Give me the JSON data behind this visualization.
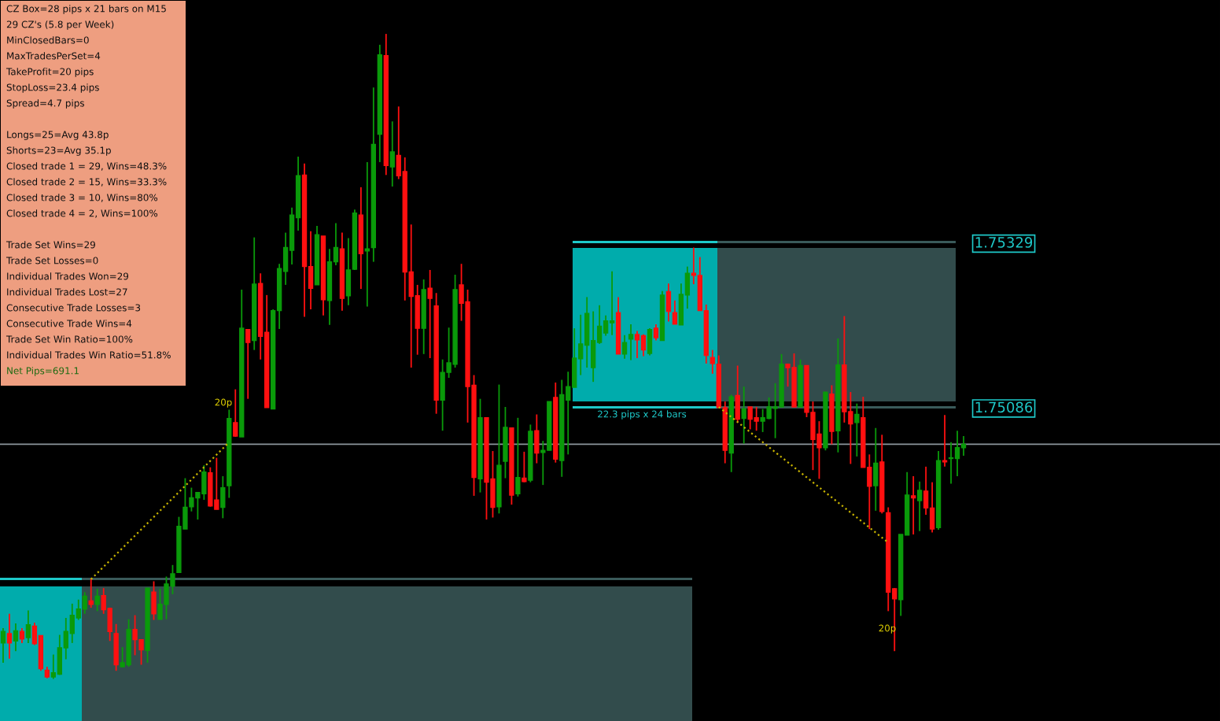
{
  "chart_data": {
    "type": "candlestick",
    "categories": [
      null,
      null,
      null,
      null,
      null,
      null,
      null,
      null,
      null,
      null,
      null,
      null,
      null,
      null,
      null,
      null,
      null,
      null,
      null,
      null,
      null,
      null,
      null,
      null,
      null,
      null,
      null,
      null,
      null,
      null,
      null,
      null,
      null,
      null,
      null,
      null,
      null,
      null,
      null,
      null,
      null,
      null,
      null,
      null,
      null,
      null,
      null,
      null,
      null,
      null,
      null,
      null,
      null,
      null,
      null,
      null,
      null,
      null,
      null,
      null,
      null,
      null,
      null,
      null,
      null,
      null,
      null,
      null,
      null,
      null,
      null,
      null,
      null,
      null,
      null,
      null,
      null,
      null,
      null,
      null,
      null,
      null,
      null,
      null,
      null,
      null,
      null,
      null,
      null,
      null,
      null,
      null,
      null,
      null,
      null,
      null,
      null,
      null,
      null,
      null,
      null,
      null,
      null,
      null,
      null,
      null,
      null,
      null,
      null,
      null,
      null,
      null,
      null,
      null,
      null,
      null,
      null,
      null,
      null,
      null,
      null,
      null,
      null,
      null,
      null,
      null,
      null,
      null,
      null,
      null,
      null,
      null,
      null,
      null,
      null,
      null,
      null,
      null,
      null,
      null,
      null,
      null,
      null,
      null,
      null,
      null,
      null,
      null,
      null,
      null,
      null,
      null,
      null,
      null
    ],
    "ohlc": [
      [
        1.74738,
        1.7476,
        1.74709,
        1.74755
      ],
      [
        1.74752,
        1.74781,
        1.74715,
        1.74738
      ],
      [
        1.74741,
        1.74767,
        1.74726,
        1.74756
      ],
      [
        1.74755,
        1.7476,
        1.74738,
        1.74744
      ],
      [
        1.74746,
        1.74786,
        1.74738,
        1.74765
      ],
      [
        1.74763,
        1.74768,
        1.74735,
        1.74737
      ],
      [
        1.74749,
        1.74749,
        1.74697,
        1.747
      ],
      [
        1.74698,
        1.74703,
        1.74686,
        1.74688
      ],
      [
        1.74688,
        1.74721,
        1.74685,
        1.74694
      ],
      [
        1.74692,
        1.7475,
        1.74691,
        1.74731
      ],
      [
        1.74731,
        1.74775,
        1.74714,
        1.74755
      ],
      [
        1.74752,
        1.74796,
        1.74738,
        1.74779
      ],
      [
        1.74775,
        1.74802,
        1.74772,
        1.74788
      ],
      [
        1.74788,
        1.74813,
        1.74781,
        1.74807
      ],
      [
        1.748,
        1.74833,
        1.7479,
        1.74795
      ],
      [
        1.74795,
        1.74818,
        1.74785,
        1.74807
      ],
      [
        1.74808,
        1.74819,
        1.74781,
        1.74787
      ],
      [
        1.74789,
        1.7479,
        1.74741,
        1.74755
      ],
      [
        1.74752,
        1.74766,
        1.74697,
        1.74706
      ],
      [
        1.74703,
        1.74732,
        1.74702,
        1.74709
      ],
      [
        1.74706,
        1.74773,
        1.74703,
        1.74758
      ],
      [
        1.74758,
        1.74779,
        1.7472,
        1.74743
      ],
      [
        1.74743,
        1.74743,
        1.74706,
        1.74728
      ],
      [
        1.74727,
        1.74819,
        1.74709,
        1.74819
      ],
      [
        1.74813,
        1.74829,
        1.74772,
        1.74781
      ],
      [
        1.74773,
        1.74818,
        1.74773,
        1.74795
      ],
      [
        1.74795,
        1.74836,
        1.74773,
        1.74825
      ],
      [
        1.74822,
        1.74853,
        1.7481,
        1.7484
      ],
      [
        1.74842,
        1.74924,
        1.74842,
        1.7491
      ],
      [
        1.74906,
        1.74981,
        1.74906,
        1.74938
      ],
      [
        1.74939,
        1.74967,
        1.74932,
        1.74952
      ],
      [
        1.74952,
        1.7496,
        1.7492,
        1.7496
      ],
      [
        1.74958,
        1.75,
        1.74949,
        1.7499
      ],
      [
        1.74989,
        1.74997,
        1.74939,
        1.7494
      ],
      [
        1.74949,
        1.75011,
        1.74935,
        1.74935
      ],
      [
        1.74938,
        1.74984,
        1.74922,
        1.74967
      ],
      [
        1.7497,
        1.75082,
        1.74952,
        1.75069
      ],
      [
        1.75063,
        1.75112,
        1.75042,
        1.75043
      ],
      [
        1.75042,
        1.75259,
        1.75042,
        1.75202
      ],
      [
        1.752,
        1.752,
        1.75098,
        1.75181
      ],
      [
        1.75184,
        1.75336,
        1.7517,
        1.75267
      ],
      [
        1.75268,
        1.75283,
        1.75156,
        1.7519
      ],
      [
        1.75196,
        1.75251,
        1.75085,
        1.75085
      ],
      [
        1.75083,
        1.7523,
        1.75083,
        1.75228
      ],
      [
        1.75228,
        1.75297,
        1.75201,
        1.7529
      ],
      [
        1.75286,
        1.75343,
        1.75266,
        1.75321
      ],
      [
        1.75317,
        1.7538,
        1.75296,
        1.75369
      ],
      [
        1.75365,
        1.75455,
        1.75346,
        1.75427
      ],
      [
        1.75428,
        1.75445,
        1.75219,
        1.75293
      ],
      [
        1.75293,
        1.75345,
        1.7523,
        1.75261
      ],
      [
        1.75266,
        1.75353,
        1.75266,
        1.7534
      ],
      [
        1.75338,
        1.75338,
        1.75221,
        1.75244
      ],
      [
        1.75243,
        1.75319,
        1.75207,
        1.753
      ],
      [
        1.753,
        1.75357,
        1.75295,
        1.75321
      ],
      [
        1.75319,
        1.75343,
        1.75228,
        1.75246
      ],
      [
        1.7525,
        1.75335,
        1.75236,
        1.75288
      ],
      [
        1.75289,
        1.75377,
        1.75288,
        1.75372
      ],
      [
        1.75369,
        1.7541,
        1.7526,
        1.75312
      ],
      [
        1.75316,
        1.75447,
        1.75234,
        1.75319
      ],
      [
        1.75321,
        1.75557,
        1.753,
        1.75473
      ],
      [
        1.75488,
        1.7562,
        1.75447,
        1.75605
      ],
      [
        1.75604,
        1.75636,
        1.75428,
        1.75442
      ],
      [
        1.7544,
        1.75507,
        1.75411,
        1.75462
      ],
      [
        1.75457,
        1.75529,
        1.75422,
        1.75427
      ],
      [
        1.75433,
        1.75454,
        1.75243,
        1.75285
      ],
      [
        1.75285,
        1.75355,
        1.75144,
        1.75249
      ],
      [
        1.7525,
        1.75266,
        1.75163,
        1.75202
      ],
      [
        1.75202,
        1.75274,
        1.75164,
        1.75259
      ],
      [
        1.75261,
        1.75288,
        1.75158,
        1.75246
      ],
      [
        1.75235,
        1.75254,
        1.75076,
        1.75096
      ],
      [
        1.75096,
        1.75156,
        1.75051,
        1.75137
      ],
      [
        1.75137,
        1.75203,
        1.75129,
        1.75151
      ],
      [
        1.75149,
        1.75281,
        1.75144,
        1.75259
      ],
      [
        1.75266,
        1.75297,
        1.75213,
        1.75239
      ],
      [
        1.75241,
        1.75259,
        1.75063,
        1.75116
      ],
      [
        1.75118,
        1.75133,
        1.74955,
        1.74982
      ],
      [
        1.7498,
        1.75098,
        1.7496,
        1.7507
      ],
      [
        1.7507,
        1.7507,
        1.7492,
        1.74975
      ],
      [
        1.7498,
        1.75021,
        1.74923,
        1.74938
      ],
      [
        1.74939,
        1.75119,
        1.74929,
        1.75
      ],
      [
        1.75006,
        1.75086,
        1.74981,
        1.75056
      ],
      [
        1.75055,
        1.75055,
        1.74942,
        1.74956
      ],
      [
        1.74958,
        1.7507,
        1.74954,
        1.74982
      ],
      [
        1.74981,
        1.7502,
        1.74975,
        1.74976
      ],
      [
        1.74978,
        1.7506,
        1.74975,
        1.7505
      ],
      [
        1.75051,
        1.75075,
        1.75003,
        1.75018
      ],
      [
        1.75019,
        1.75036,
        1.74971,
        1.75022
      ],
      [
        1.75022,
        1.75094,
        1.75022,
        1.75094
      ],
      [
        1.751,
        1.75122,
        1.75004,
        1.75009
      ],
      [
        1.75007,
        1.75126,
        1.74983,
        1.75104
      ],
      [
        1.75096,
        1.75138,
        1.75016,
        1.75116
      ],
      [
        1.75115,
        1.75202,
        1.75115,
        1.75158
      ],
      [
        1.75157,
        1.75222,
        1.75133,
        1.75179
      ],
      [
        1.75177,
        1.75248,
        1.75144,
        1.75224
      ],
      [
        1.75144,
        1.75227,
        1.75123,
        1.75184
      ],
      [
        1.75181,
        1.75236,
        1.75179,
        1.75205
      ],
      [
        1.75195,
        1.75221,
        1.75191,
        1.75213
      ],
      [
        1.7521,
        1.75286,
        1.75192,
        1.75213
      ],
      [
        1.75225,
        1.75248,
        1.75164,
        1.75164
      ],
      [
        1.75164,
        1.75192,
        1.75157,
        1.75181
      ],
      [
        1.75186,
        1.75208,
        1.75155,
        1.75193
      ],
      [
        1.75193,
        1.75198,
        1.75158,
        1.75185
      ],
      [
        1.75191,
        1.75193,
        1.75161,
        1.7517
      ],
      [
        1.75165,
        1.75202,
        1.75162,
        1.752
      ],
      [
        1.75202,
        1.75208,
        1.75184,
        1.75188
      ],
      [
        1.75184,
        1.75257,
        1.75184,
        1.75251
      ],
      [
        1.75256,
        1.75268,
        1.75212,
        1.75227
      ],
      [
        1.75225,
        1.75243,
        1.75208,
        1.75208
      ],
      [
        1.75207,
        1.75268,
        1.75207,
        1.75252
      ],
      [
        1.75251,
        1.75293,
        1.75231,
        1.75283
      ],
      [
        1.75283,
        1.75321,
        1.75267,
        1.7528
      ],
      [
        1.7528,
        1.75307,
        1.75228,
        1.75228
      ],
      [
        1.75228,
        1.75237,
        1.7515,
        1.75162
      ],
      [
        1.75159,
        1.7517,
        1.75135,
        1.7515
      ],
      [
        1.75149,
        1.75162,
        1.75085,
        1.75085
      ],
      [
        1.75085,
        1.75094,
        1.75003,
        1.75022
      ],
      [
        1.75018,
        1.75104,
        1.7499,
        1.75101
      ],
      [
        1.75103,
        1.75147,
        1.75063,
        1.75068
      ],
      [
        1.75069,
        1.75116,
        1.75032,
        1.75083
      ],
      [
        1.75086,
        1.75086,
        1.75053,
        1.75068
      ],
      [
        1.7507,
        1.75086,
        1.75051,
        1.75065
      ],
      [
        1.75065,
        1.75083,
        1.75049,
        1.7507
      ],
      [
        1.75069,
        1.751,
        1.75068,
        1.75086
      ],
      [
        1.75084,
        1.75121,
        1.7504,
        1.75086
      ],
      [
        1.75086,
        1.75164,
        1.75086,
        1.75149
      ],
      [
        1.75149,
        1.7515,
        1.75116,
        1.75144
      ],
      [
        1.75144,
        1.75165,
        1.75086,
        1.75086
      ],
      [
        1.75086,
        1.75156,
        1.75086,
        1.75147
      ],
      [
        1.75147,
        1.75147,
        1.75071,
        1.75078
      ],
      [
        1.75078,
        1.75094,
        1.74993,
        1.75038
      ],
      [
        1.75046,
        1.75065,
        1.7498,
        1.75026
      ],
      [
        1.75026,
        1.75108,
        1.75022,
        1.75108
      ],
      [
        1.75105,
        1.75118,
        1.75031,
        1.7505
      ],
      [
        1.75051,
        1.75187,
        1.75019,
        1.75148
      ],
      [
        1.75148,
        1.7522,
        1.75063,
        1.75079
      ],
      [
        1.75079,
        1.75108,
        1.75002,
        1.75061
      ],
      [
        1.75063,
        1.75091,
        1.75013,
        1.75075
      ],
      [
        1.7507,
        1.75101,
        1.74997,
        1.74997
      ],
      [
        1.74997,
        1.75016,
        1.74906,
        1.74969
      ],
      [
        1.7497,
        1.75055,
        1.74933,
        1.75003
      ],
      [
        1.75005,
        1.75045,
        1.74929,
        1.74932
      ],
      [
        1.7493,
        1.74938,
        1.74785,
        1.74813
      ],
      [
        1.74818,
        1.74819,
        1.74726,
        1.74803
      ],
      [
        1.74802,
        1.74898,
        1.74778,
        1.74898
      ],
      [
        1.74897,
        1.7499,
        1.74897,
        1.74956
      ],
      [
        1.74955,
        1.74984,
        1.74898,
        1.74952
      ],
      [
        1.74948,
        1.74976,
        1.74903,
        1.74963
      ],
      [
        1.74962,
        1.74998,
        1.74927,
        1.74937
      ],
      [
        1.74937,
        1.74975,
        1.74901,
        1.74906
      ],
      [
        1.74908,
        1.75021,
        1.74905,
        1.75007
      ],
      [
        1.75007,
        1.75074,
        1.74998,
        1.75005
      ],
      [
        1.7501,
        1.75034,
        1.74973,
        1.75011
      ],
      [
        1.7501,
        1.75051,
        1.74984,
        1.75026
      ],
      [
        1.75026,
        1.75043,
        1.75014,
        1.75031
      ]
    ],
    "colors": [
      "#0a9a0a",
      "#ff1010",
      "#0a9a0a",
      "#ff1010",
      "#0a9a0a",
      "#ff1010",
      "#ff1010",
      "#ff1010",
      "#0a9a0a",
      "#0a9a0a",
      "#0a9a0a",
      "#0a9a0a",
      "#0a9a0a",
      "#0a9a0a",
      "#ff1010",
      "#0a9a0a",
      "#ff1010",
      "#ff1010",
      "#ff1010",
      "#0a9a0a",
      "#0a9a0a",
      "#ff1010",
      "#ff1010",
      "#0a9a0a",
      "#ff1010",
      "#0a9a0a",
      "#0a9a0a",
      "#0a9a0a",
      "#0a9a0a",
      "#0a9a0a",
      "#0a9a0a",
      "#0a9a0a",
      "#0a9a0a",
      "#ff1010",
      "#ff1010",
      "#0a9a0a",
      "#0a9a0a",
      "#ff1010",
      "#0a9a0a",
      "#ff1010",
      "#0a9a0a",
      "#ff1010",
      "#ff1010",
      "#0a9a0a",
      "#0a9a0a",
      "#0a9a0a",
      "#0a9a0a",
      "#0a9a0a",
      "#ff1010",
      "#ff1010",
      "#0a9a0a",
      "#ff1010",
      "#0a9a0a",
      "#0a9a0a",
      "#ff1010",
      "#0a9a0a",
      "#0a9a0a",
      "#ff1010",
      "#0a9a0a",
      "#0a9a0a",
      "#0a9a0a",
      "#ff1010",
      "#0a9a0a",
      "#ff1010",
      "#ff1010",
      "#ff1010",
      "#ff1010",
      "#0a9a0a",
      "#ff1010",
      "#ff1010",
      "#0a9a0a",
      "#0a9a0a",
      "#0a9a0a",
      "#ff1010",
      "#ff1010",
      "#ff1010",
      "#0a9a0a",
      "#ff1010",
      "#ff1010",
      "#0a9a0a",
      "#0a9a0a",
      "#ff1010",
      "#0a9a0a",
      "#ff1010",
      "#0a9a0a",
      "#ff1010",
      "#0a9a0a",
      "#0a9a0a",
      "#ff1010",
      "#0a9a0a",
      "#0a9a0a",
      "#0a9a0a",
      "#0a9a0a",
      "#0a9a0a",
      "#0a9a0a",
      "#0a9a0a",
      "#0a9a0a",
      "#0a9a0a",
      "#ff1010",
      "#0a9a0a",
      "#0a9a0a",
      "#ff1010",
      "#ff1010",
      "#0a9a0a",
      "#ff1010",
      "#0a9a0a",
      "#ff1010",
      "#ff1010",
      "#0a9a0a",
      "#0a9a0a",
      "#ff1010",
      "#ff1010",
      "#ff1010",
      "#ff1010",
      "#ff1010",
      "#ff1010",
      "#0a9a0a",
      "#ff1010",
      "#0a9a0a",
      "#ff1010",
      "#ff1010",
      "#0a9a0a",
      "#0a9a0a",
      "#0a9a0a",
      "#0a9a0a",
      "#ff1010",
      "#ff1010",
      "#0a9a0a",
      "#ff1010",
      "#ff1010",
      "#ff1010",
      "#0a9a0a",
      "#ff1010",
      "#0a9a0a",
      "#ff1010",
      "#ff1010",
      "#0a9a0a",
      "#ff1010",
      "#ff1010",
      "#0a9a0a",
      "#ff1010",
      "#ff1010",
      "#ff1010",
      "#0a9a0a",
      "#0a9a0a",
      "#ff1010",
      "#0a9a0a",
      "#ff1010",
      "#ff1010",
      "#0a9a0a",
      "#ff1010",
      "#0a9a0a",
      "#0a9a0a",
      "#0a9a0a"
    ],
    "ylim": [
      1.74623,
      1.75686
    ],
    "yticks": [
      1.75329,
      1.75086
    ],
    "tick_labels": "y",
    "grid": false,
    "ref_lines": [
      {
        "axis": "y",
        "value": 1.75031,
        "color": "#8c969c"
      }
    ],
    "series": [
      {
        "type": "line",
        "color": "#c8b400",
        "line_style": "dotted",
        "values": [
          null,
          null,
          null,
          null,
          null,
          null,
          null,
          null,
          null,
          null,
          null,
          null,
          null,
          null,
          1.74832,
          null,
          null,
          null,
          null,
          null,
          null,
          null,
          null,
          null,
          null,
          null,
          null,
          null,
          null,
          null,
          null,
          null,
          null,
          null,
          null,
          null,
          1.75034,
          null,
          null,
          null,
          null,
          null,
          null,
          null,
          null,
          null,
          null,
          null,
          null,
          null,
          null,
          null,
          null,
          null,
          null,
          null,
          null,
          null,
          null,
          null,
          null,
          null,
          null,
          null,
          null,
          null,
          null,
          null,
          null,
          null,
          null,
          null,
          null,
          null,
          null,
          null,
          null,
          null,
          null,
          null,
          null,
          null,
          null,
          null,
          null,
          null,
          null,
          null,
          null,
          null,
          null,
          null,
          null,
          null,
          null,
          null,
          null,
          null,
          null,
          null,
          null,
          null,
          null,
          null,
          null,
          null,
          null,
          null,
          null,
          null,
          null,
          null,
          null,
          null,
          null,
          null,
          null,
          null,
          null,
          null,
          null,
          null,
          null,
          null,
          null,
          null,
          null,
          null,
          null,
          null,
          null,
          null,
          null,
          null,
          null,
          null,
          null,
          null,
          null,
          null,
          null,
          null,
          null,
          null,
          null,
          null,
          null,
          null,
          null,
          null,
          null,
          null,
          null,
          null
        ]
      },
      {
        "type": "line",
        "color": "#c8b400",
        "line_style": "dotted",
        "values": [
          null,
          null,
          null,
          null,
          null,
          null,
          null,
          null,
          null,
          null,
          null,
          null,
          null,
          null,
          null,
          null,
          null,
          null,
          null,
          null,
          null,
          null,
          null,
          null,
          null,
          null,
          null,
          null,
          null,
          null,
          null,
          null,
          null,
          null,
          null,
          null,
          null,
          null,
          null,
          null,
          null,
          null,
          null,
          null,
          null,
          null,
          null,
          null,
          null,
          null,
          null,
          null,
          null,
          null,
          null,
          null,
          null,
          null,
          null,
          null,
          null,
          null,
          null,
          null,
          null,
          null,
          null,
          null,
          null,
          null,
          null,
          null,
          null,
          null,
          null,
          null,
          null,
          null,
          null,
          null,
          null,
          null,
          null,
          null,
          null,
          null,
          null,
          null,
          null,
          null,
          null,
          null,
          null,
          null,
          null,
          null,
          null,
          null,
          null,
          null,
          null,
          null,
          null,
          null,
          null,
          null,
          null,
          null,
          null,
          null,
          null,
          null,
          null,
          null,
          1.75086,
          null,
          null,
          null,
          null,
          null,
          null,
          null,
          null,
          null,
          null,
          null,
          null,
          null,
          null,
          null,
          null,
          null,
          null,
          null,
          null,
          null,
          null,
          null,
          null,
          null,
          null,
          1.74886,
          null,
          null,
          null,
          null,
          null,
          null,
          null,
          null,
          null,
          null,
          null,
          null
        ]
      }
    ],
    "annotations": [
      "CZ Box=28 pips x 21 bars on M15\n29 CZ's (5.8 per Week)\nMinClosedBars=0\nMaxTradesPerSet=4\nTakeProfit=20 pips\nStopLoss=23.4 pips\nSpread=4.7 pips",
      "Longs=25=Avg 43.8p\nShorts=23=Avg 35.1p\nClosed trade 1 = 29, Wins=48.3%\nClosed trade 2 = 15, Wins=33.3%\nClosed trade 3 = 10, Wins=80%\nClosed trade 4 = 2, Wins=100%",
      "Trade Set Wins=29\nTrade Set Losses=0\nIndividual Trades Won=29\nIndividual Trades Lost=27\nConsecutive Trade Losses=3\nConsecutive Trade Wins=4\nTrade Set Win Ratio=100%\nIndividual Trades Win Ratio=51.8%",
      "Net Pips=691.1",
      "20p",
      "20p",
      "22.3 pips x 24 bars"
    ]
  }
}
